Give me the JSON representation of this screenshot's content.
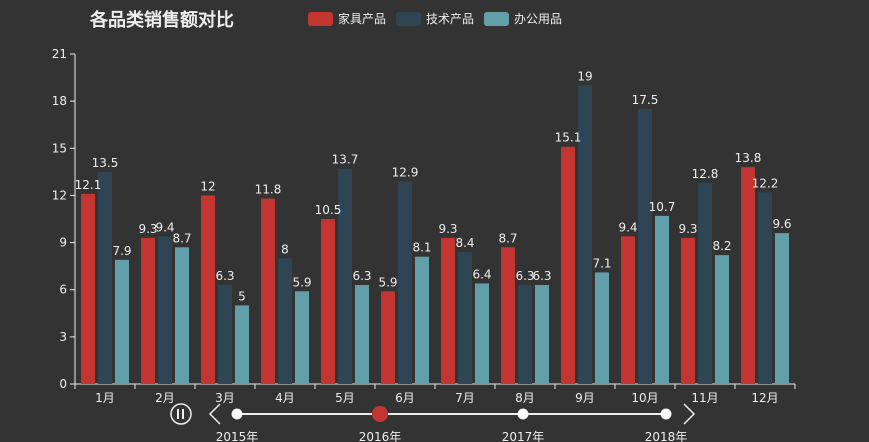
{
  "colors": {
    "background": "#333333",
    "axis": "#eeeeee",
    "furniture": "#c23531",
    "tech": "#2f4554",
    "office": "#61a0a8",
    "timeline_line": "#eeeeee",
    "timeline_active": "#c23531"
  },
  "chart_data": {
    "type": "bar",
    "title": "各品类销售额对比",
    "categories": [
      "1月",
      "2月",
      "3月",
      "4月",
      "5月",
      "6月",
      "7月",
      "8月",
      "9月",
      "10月",
      "11月",
      "12月"
    ],
    "series": [
      {
        "name": "家具产品",
        "values": [
          12.1,
          9.3,
          12,
          11.8,
          10.5,
          5.9,
          9.3,
          8.7,
          15.1,
          9.4,
          9.3,
          13.8
        ]
      },
      {
        "name": "技术产品",
        "values": [
          13.5,
          9.4,
          6.3,
          8,
          13.7,
          12.9,
          8.4,
          6.3,
          19,
          17.5,
          12.8,
          12.2
        ]
      },
      {
        "name": "办公用品",
        "values": [
          7.9,
          8.7,
          5,
          5.9,
          6.3,
          8.1,
          6.4,
          6.3,
          7.1,
          10.7,
          8.2,
          9.6
        ]
      }
    ],
    "yticks": [
      0,
      3,
      6,
      9,
      12,
      15,
      18,
      21
    ],
    "ylim": [
      0,
      21
    ],
    "xlabel": "",
    "ylabel": "",
    "legend_position": "top-center"
  },
  "timeline": {
    "years": [
      "2015年",
      "2016年",
      "2017年",
      "2018年"
    ],
    "current_index": 1,
    "play_icon": "pause-icon",
    "prev_icon": "chevron-left-icon",
    "next_icon": "chevron-right-icon"
  }
}
